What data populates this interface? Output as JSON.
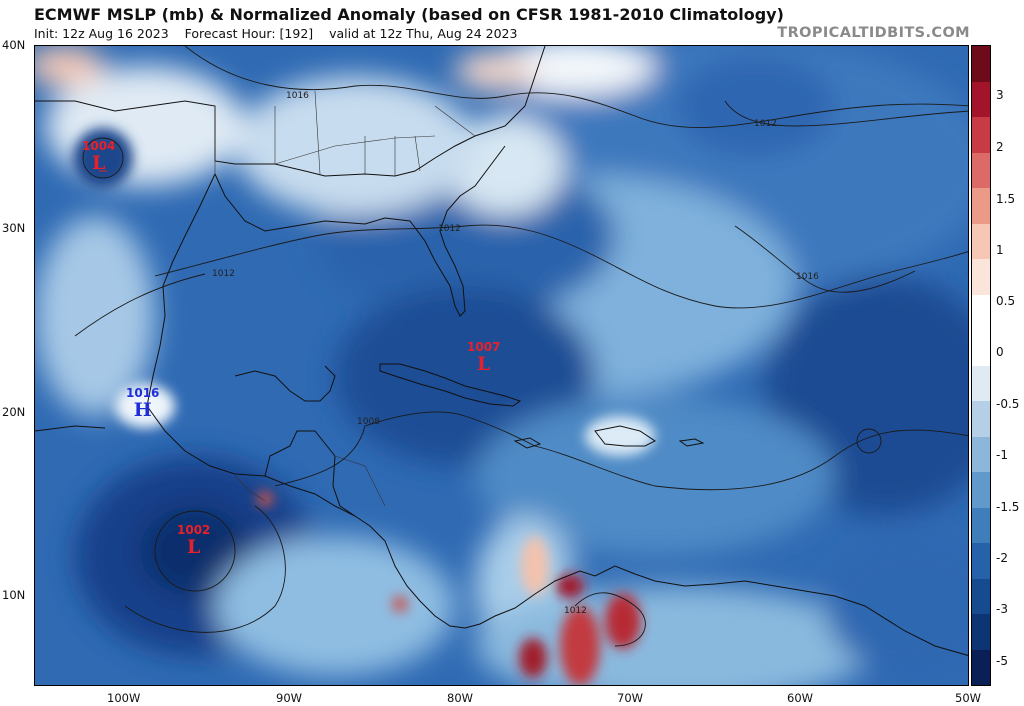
{
  "header": {
    "title": "ECMWF MSLP (mb) & Normalized Anomaly (based on CFSR 1981-2010 Climatology)",
    "init": "Init: 12z Aug 16 2023",
    "forecast_hour": "Forecast Hour: [192]",
    "valid": "valid at 12z Thu, Aug 24 2023",
    "brand": "TROPICALTIDBITS.COM"
  },
  "axes": {
    "latitudes": [
      "40N",
      "30N",
      "20N",
      "10N"
    ],
    "longitudes": [
      "100W",
      "90W",
      "80W",
      "70W",
      "60W",
      "50W"
    ]
  },
  "colorbar": {
    "labels": [
      "3",
      "2",
      "1.5",
      "1",
      "0.5",
      "0",
      "-0.5",
      "-1",
      "-1.5",
      "-2",
      "-3",
      "-5"
    ],
    "colors": [
      "#6e0b1a",
      "#a3142a",
      "#c83a44",
      "#dc6a66",
      "#ec9a88",
      "#f6c7b4",
      "#fbe5da",
      "#ffffff",
      "#ffffff",
      "#dfeaf3",
      "#b5d0e6",
      "#8cb7da",
      "#6199cb",
      "#3f7dbb",
      "#2662a9",
      "#164b90",
      "#0e3573",
      "#0a1f55"
    ]
  },
  "systems": [
    {
      "type": "L",
      "pressure": "1004"
    },
    {
      "type": "L",
      "pressure": "1007"
    },
    {
      "type": "L",
      "pressure": "1002"
    },
    {
      "type": "H",
      "pressure": "1016"
    }
  ],
  "isobar_labels": [
    "1016",
    "1012",
    "1012",
    "1012",
    "1016",
    "1008",
    "1012"
  ],
  "palette": {
    "ocean_deep": "#123e86",
    "ocean_mid": "#2c66b0",
    "ocean_light": "#5a92c8",
    "pale": "#b9d4ea",
    "white": "#f4f8fc",
    "warm": "#f2b7a3",
    "hot": "#b01e2e"
  }
}
